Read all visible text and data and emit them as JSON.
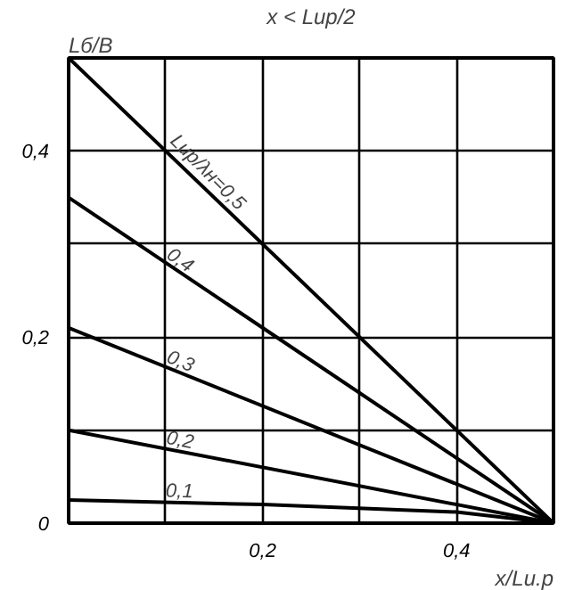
{
  "chart_data": {
    "type": "line",
    "title": "x < Lир/2",
    "xlabel": "x/Lи.р",
    "ylabel": "Lб/B",
    "xlim": [
      0,
      0.5
    ],
    "ylim": [
      0,
      0.5
    ],
    "xticks": [
      {
        "value": 0.1,
        "label": null
      },
      {
        "value": 0.2,
        "label": "0,2"
      },
      {
        "value": 0.3,
        "label": null
      },
      {
        "value": 0.4,
        "label": "0,4"
      }
    ],
    "yticks": [
      {
        "value": 0,
        "label": "0"
      },
      {
        "value": 0.1,
        "label": null
      },
      {
        "value": 0.2,
        "label": "0,2"
      },
      {
        "value": 0.3,
        "label": null
      },
      {
        "value": 0.4,
        "label": "0,4"
      }
    ],
    "grid": true,
    "line_style": "solid",
    "series": [
      {
        "name": "Lир/λн=0,5",
        "color": "#000000",
        "x": [
          0,
          0.5
        ],
        "values": [
          0.5,
          0
        ]
      },
      {
        "name": "0,4",
        "color": "#000000",
        "x": [
          0,
          0.5
        ],
        "values": [
          0.35,
          0
        ]
      },
      {
        "name": "0,3",
        "color": "#000000",
        "x": [
          0,
          0.5
        ],
        "values": [
          0.21,
          0
        ]
      },
      {
        "name": "0,2",
        "color": "#000000",
        "x": [
          0,
          0.5
        ],
        "values": [
          0.1,
          0
        ]
      },
      {
        "name": "0,1",
        "color": "#000000",
        "x": [
          0,
          0.2,
          0.4,
          0.5
        ],
        "values": [
          0.025,
          0.02,
          0.012,
          0
        ]
      }
    ]
  }
}
